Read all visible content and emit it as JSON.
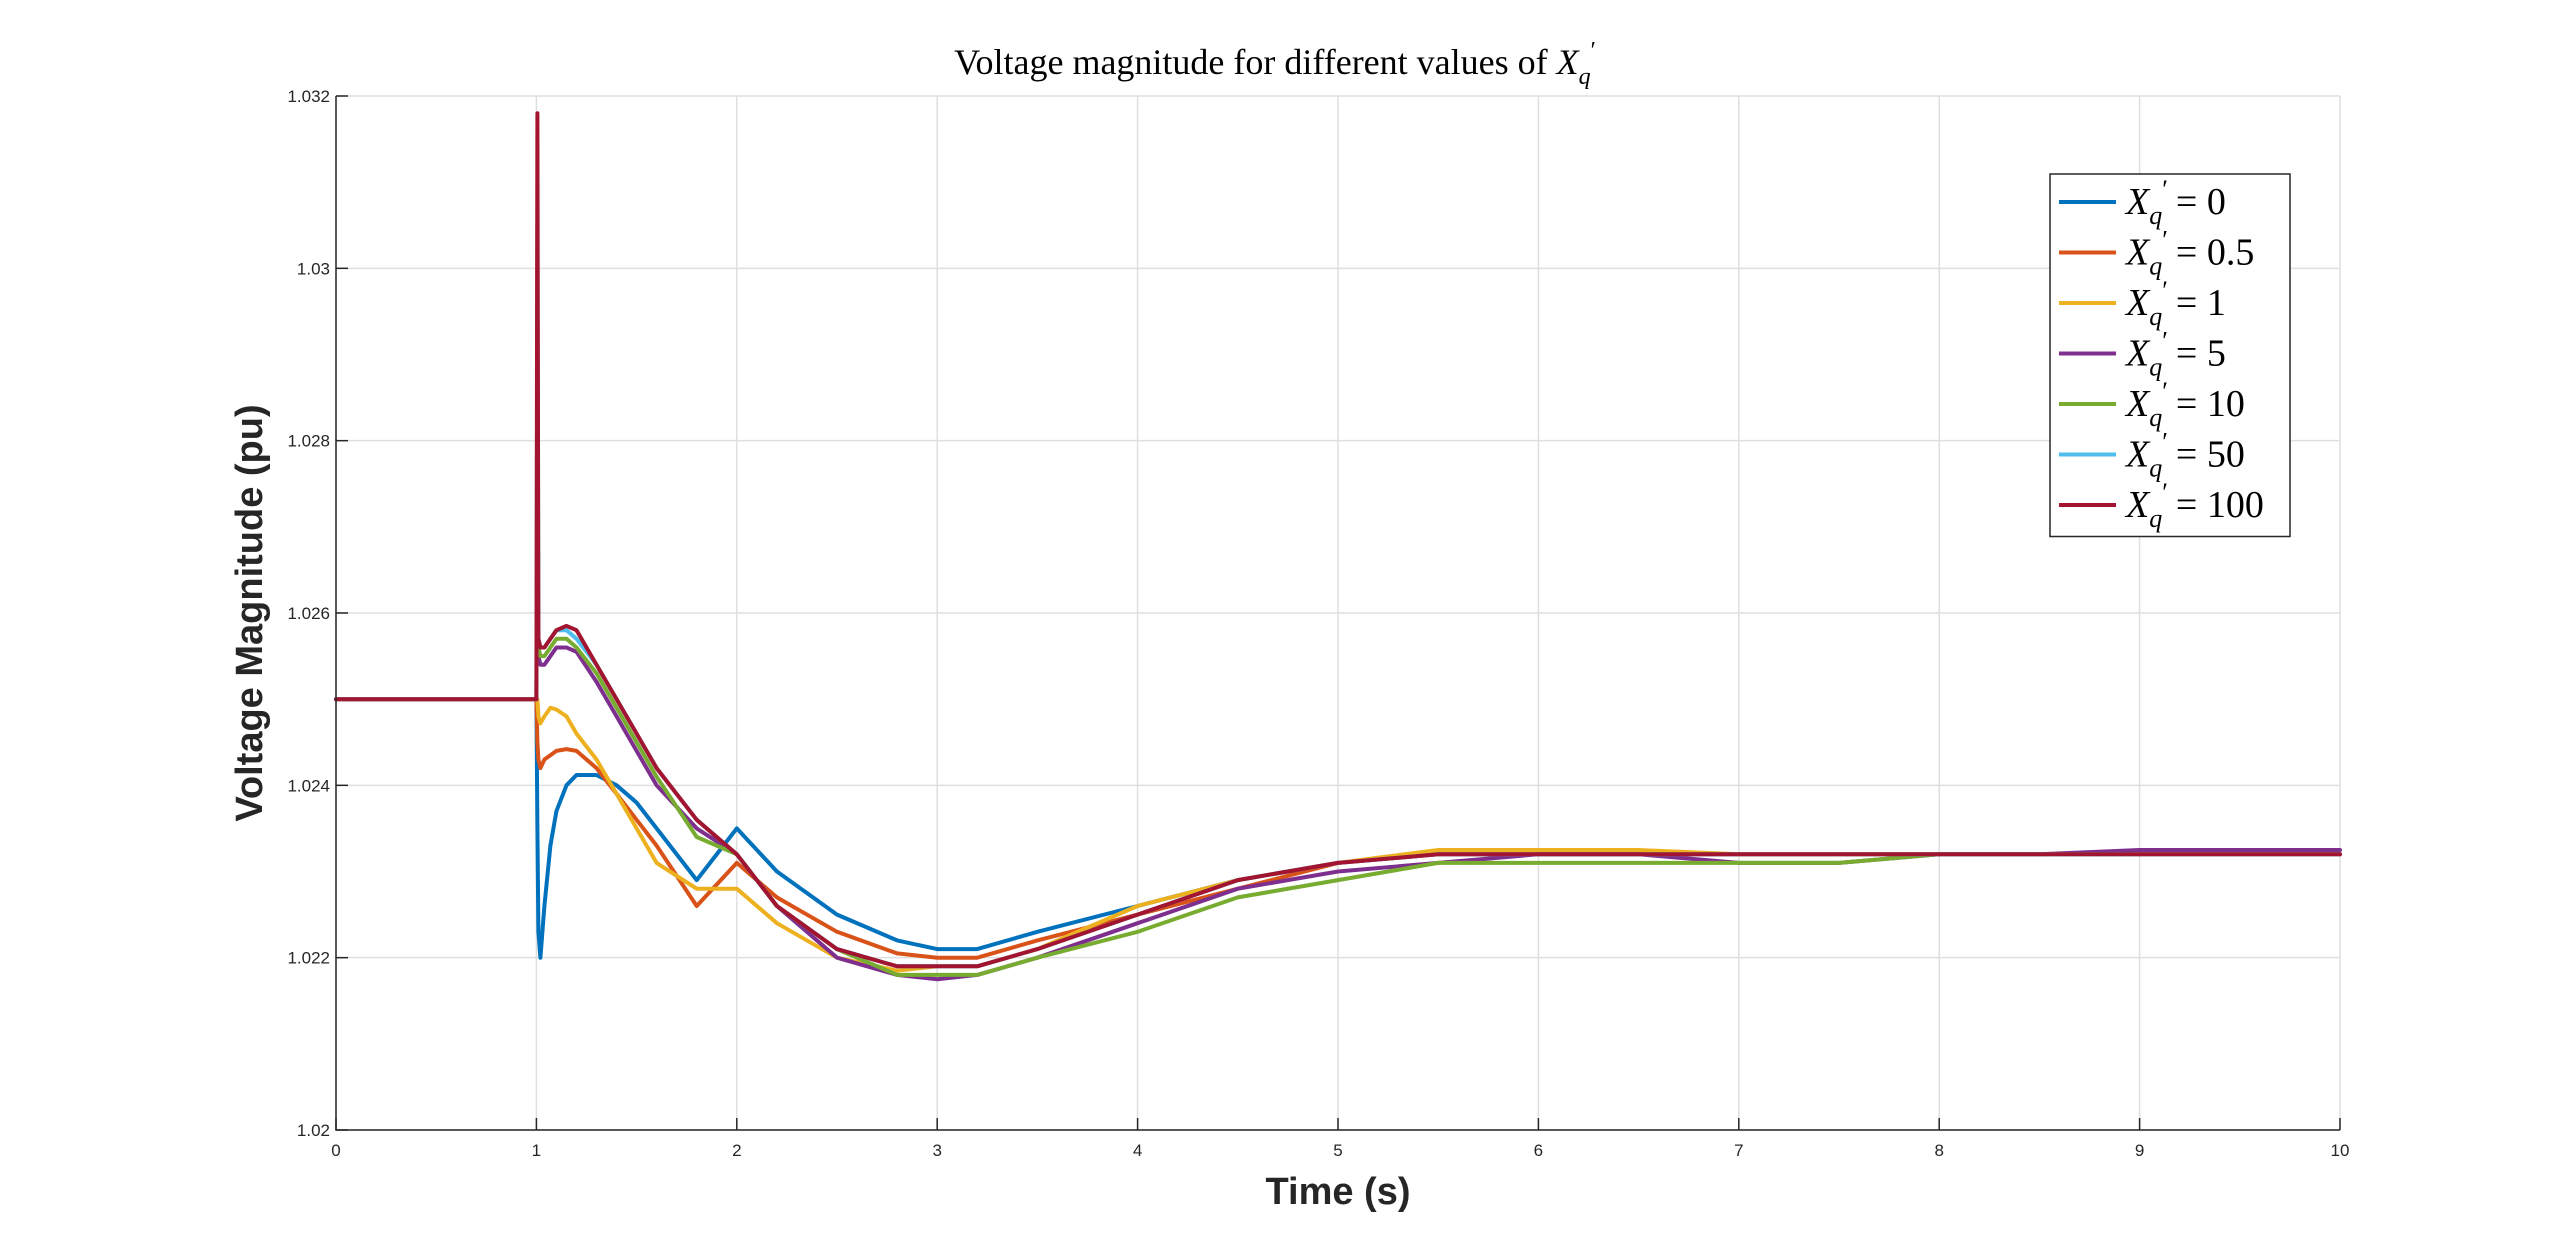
{
  "chart_data": {
    "type": "line",
    "title_prefix": "Voltage magnitude for different values of ",
    "title_symbol": "X",
    "title_sub": "q",
    "title_prime": "′",
    "xlabel": "Time (s)",
    "ylabel": "Voltage Magnitude (pu)",
    "xlim": [
      0,
      10
    ],
    "ylim": [
      1.02,
      1.032
    ],
    "xticks": [
      "0",
      "1",
      "2",
      "3",
      "4",
      "5",
      "6",
      "7",
      "8",
      "9",
      "10"
    ],
    "yticks": [
      "1.02",
      "1.022",
      "1.024",
      "1.026",
      "1.028",
      "1.03",
      "1.032"
    ],
    "grid": true,
    "legend_position": "top-right",
    "x": [
      0,
      0.5,
      0.99,
      1.0,
      1.005,
      1.01,
      1.02,
      1.04,
      1.07,
      1.1,
      1.15,
      1.2,
      1.3,
      1.4,
      1.5,
      1.6,
      1.8,
      2.0,
      2.2,
      2.5,
      2.8,
      3.0,
      3.2,
      3.5,
      4.0,
      4.5,
      5.0,
      5.5,
      6.0,
      6.5,
      7.0,
      7.5,
      8.0,
      8.5,
      9.0,
      9.5,
      10.0
    ],
    "series": [
      {
        "name": "X'_q = 0",
        "legend_symbol": "X",
        "legend_sub": "q",
        "legend_prime": "′",
        "legend_value": "= 0",
        "color": "#0072BD",
        "values": [
          1.025,
          1.025,
          1.025,
          1.025,
          1.0235,
          1.0223,
          1.022,
          1.0226,
          1.0233,
          1.0237,
          1.024,
          1.02412,
          1.02412,
          1.024,
          1.0238,
          1.0235,
          1.0229,
          1.0235,
          1.023,
          1.0225,
          1.0222,
          1.0221,
          1.0221,
          1.0223,
          1.0226,
          1.0229,
          1.0231,
          1.0232,
          1.0232,
          1.0232,
          1.0232,
          1.0232,
          1.0232,
          1.0232,
          1.0232,
          1.0232,
          1.0232
        ]
      },
      {
        "name": "X'_q = 0.5",
        "legend_symbol": "X",
        "legend_sub": "q",
        "legend_prime": "′",
        "legend_value": "= 0.5",
        "color": "#D95319",
        "values": [
          1.025,
          1.025,
          1.025,
          1.025,
          1.0245,
          1.0243,
          1.0242,
          1.0243,
          1.02435,
          1.0244,
          1.02442,
          1.0244,
          1.0242,
          1.0239,
          1.0236,
          1.0233,
          1.0226,
          1.0231,
          1.0227,
          1.0223,
          1.02205,
          1.022,
          1.022,
          1.0222,
          1.0225,
          1.0228,
          1.0231,
          1.0232,
          1.0232,
          1.0232,
          1.0232,
          1.0232,
          1.0232,
          1.0232,
          1.0232,
          1.0232,
          1.0232
        ]
      },
      {
        "name": "X'_q = 1",
        "legend_symbol": "X",
        "legend_sub": "q",
        "legend_prime": "′",
        "legend_value": "= 1",
        "color": "#EDB120",
        "values": [
          1.025,
          1.025,
          1.025,
          1.025,
          1.025,
          1.0248,
          1.02472,
          1.0248,
          1.0249,
          1.02488,
          1.0248,
          1.0246,
          1.0243,
          1.0239,
          1.0235,
          1.0231,
          1.0228,
          1.0228,
          1.0224,
          1.022,
          1.02185,
          1.0219,
          1.0219,
          1.0221,
          1.0226,
          1.0229,
          1.0231,
          1.02325,
          1.02325,
          1.02325,
          1.0232,
          1.0232,
          1.0232,
          1.0232,
          1.0232,
          1.0232,
          1.0232
        ]
      },
      {
        "name": "X'_q = 5",
        "legend_symbol": "X",
        "legend_sub": "q",
        "legend_prime": "′",
        "legend_value": "= 5",
        "color": "#7E2F8E",
        "values": [
          1.025,
          1.025,
          1.025,
          1.025,
          1.0275,
          1.0255,
          1.0254,
          1.0254,
          1.0255,
          1.0256,
          1.0256,
          1.02555,
          1.0252,
          1.0248,
          1.0244,
          1.024,
          1.0235,
          1.0232,
          1.0226,
          1.022,
          1.0218,
          1.02175,
          1.0218,
          1.022,
          1.0224,
          1.0228,
          1.023,
          1.0231,
          1.0232,
          1.0232,
          1.0231,
          1.0231,
          1.0232,
          1.0232,
          1.02325,
          1.02325,
          1.02325
        ]
      },
      {
        "name": "X'_q = 10",
        "legend_symbol": "X",
        "legend_sub": "q",
        "legend_prime": "′",
        "legend_value": "= 10",
        "color": "#77AC30",
        "values": [
          1.025,
          1.025,
          1.025,
          1.025,
          1.0285,
          1.0256,
          1.0255,
          1.0255,
          1.0256,
          1.0257,
          1.0257,
          1.0256,
          1.0253,
          1.0249,
          1.0245,
          1.0241,
          1.0234,
          1.0232,
          1.0226,
          1.0221,
          1.0218,
          1.0218,
          1.0218,
          1.022,
          1.0223,
          1.0227,
          1.0229,
          1.0231,
          1.0231,
          1.0231,
          1.0231,
          1.0231,
          1.0232,
          1.0232,
          1.0232,
          1.0232,
          1.0232
        ]
      },
      {
        "name": "X'_q = 50",
        "legend_symbol": "X",
        "legend_sub": "q",
        "legend_prime": "′",
        "legend_value": "= 50",
        "color": "#4DBEEE",
        "values": [
          1.025,
          1.025,
          1.025,
          1.025,
          1.0305,
          1.0257,
          1.0256,
          1.0256,
          1.0257,
          1.0258,
          1.0258,
          1.0257,
          1.0254,
          1.025,
          1.0246,
          1.0242,
          1.0236,
          1.0232,
          1.0226,
          1.0221,
          1.0219,
          1.0219,
          1.0219,
          1.0221,
          1.0225,
          1.0229,
          1.0231,
          1.0232,
          1.0232,
          1.0232,
          1.0232,
          1.0232,
          1.0232,
          1.0232,
          1.0232,
          1.0232,
          1.0232
        ]
      },
      {
        "name": "X'_q = 100",
        "legend_symbol": "X",
        "legend_sub": "q",
        "legend_prime": "′",
        "legend_value": "= 100",
        "color": "#A2142F",
        "values": [
          1.025,
          1.025,
          1.025,
          1.025,
          1.0318,
          1.0257,
          1.0256,
          1.0256,
          1.0257,
          1.0258,
          1.02585,
          1.0258,
          1.0254,
          1.025,
          1.0246,
          1.0242,
          1.0236,
          1.0232,
          1.0226,
          1.0221,
          1.0219,
          1.0219,
          1.0219,
          1.0221,
          1.0225,
          1.0229,
          1.0231,
          1.0232,
          1.0232,
          1.0232,
          1.0232,
          1.0232,
          1.0232,
          1.0232,
          1.0232,
          1.0232,
          1.0232
        ]
      }
    ]
  }
}
